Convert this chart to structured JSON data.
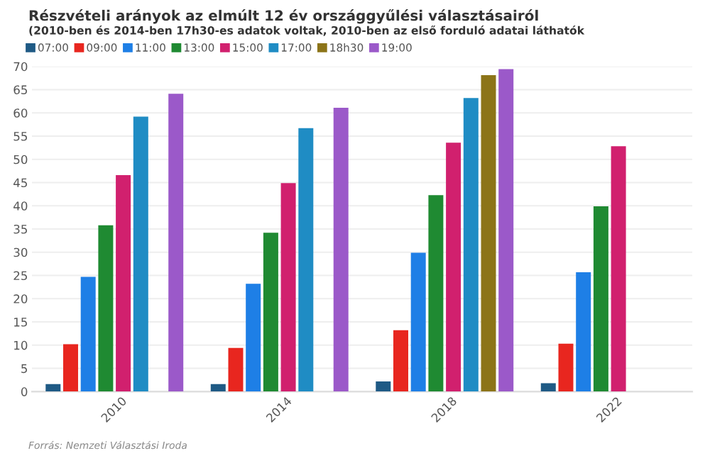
{
  "chart_data": {
    "type": "bar",
    "title": "Részvételi arányok az elmúlt 12 év országgyűlési választásairól",
    "subtitle": "(2010-ben és 2014-ben 17h30-es adatok voltak, 2010-ben az első forduló adatai láthatók",
    "categories": [
      "2010",
      "2014",
      "2018",
      "2022"
    ],
    "series": [
      {
        "name": "07:00",
        "color": "#1f5a85",
        "values": [
          1.6,
          1.6,
          2.2,
          1.8
        ]
      },
      {
        "name": "09:00",
        "color": "#e8261f",
        "values": [
          10.2,
          9.4,
          13.2,
          10.3
        ]
      },
      {
        "name": "11:00",
        "color": "#1e7fe6",
        "values": [
          24.7,
          23.2,
          29.9,
          25.7
        ]
      },
      {
        "name": "13:00",
        "color": "#1f8a32",
        "values": [
          35.8,
          34.2,
          42.3,
          39.9
        ]
      },
      {
        "name": "15:00",
        "color": "#d1206e",
        "values": [
          46.6,
          44.9,
          53.6,
          52.8
        ]
      },
      {
        "name": "17:00",
        "color": "#1f8cc4",
        "values": [
          59.2,
          56.7,
          63.2,
          null
        ]
      },
      {
        "name": "18h30",
        "color": "#8c7418",
        "values": [
          null,
          null,
          68.1,
          null
        ]
      },
      {
        "name": "19:00",
        "color": "#9b59c9",
        "values": [
          64.1,
          61.1,
          69.4,
          null
        ]
      }
    ],
    "ylim": [
      0,
      70
    ],
    "yticks": [
      0,
      5,
      10,
      15,
      20,
      25,
      30,
      35,
      40,
      45,
      50,
      55,
      60,
      65,
      70
    ],
    "grid": "y",
    "legend": "top left",
    "annotations": [
      "Forrás: Nemzeti Választási Iroda"
    ]
  }
}
